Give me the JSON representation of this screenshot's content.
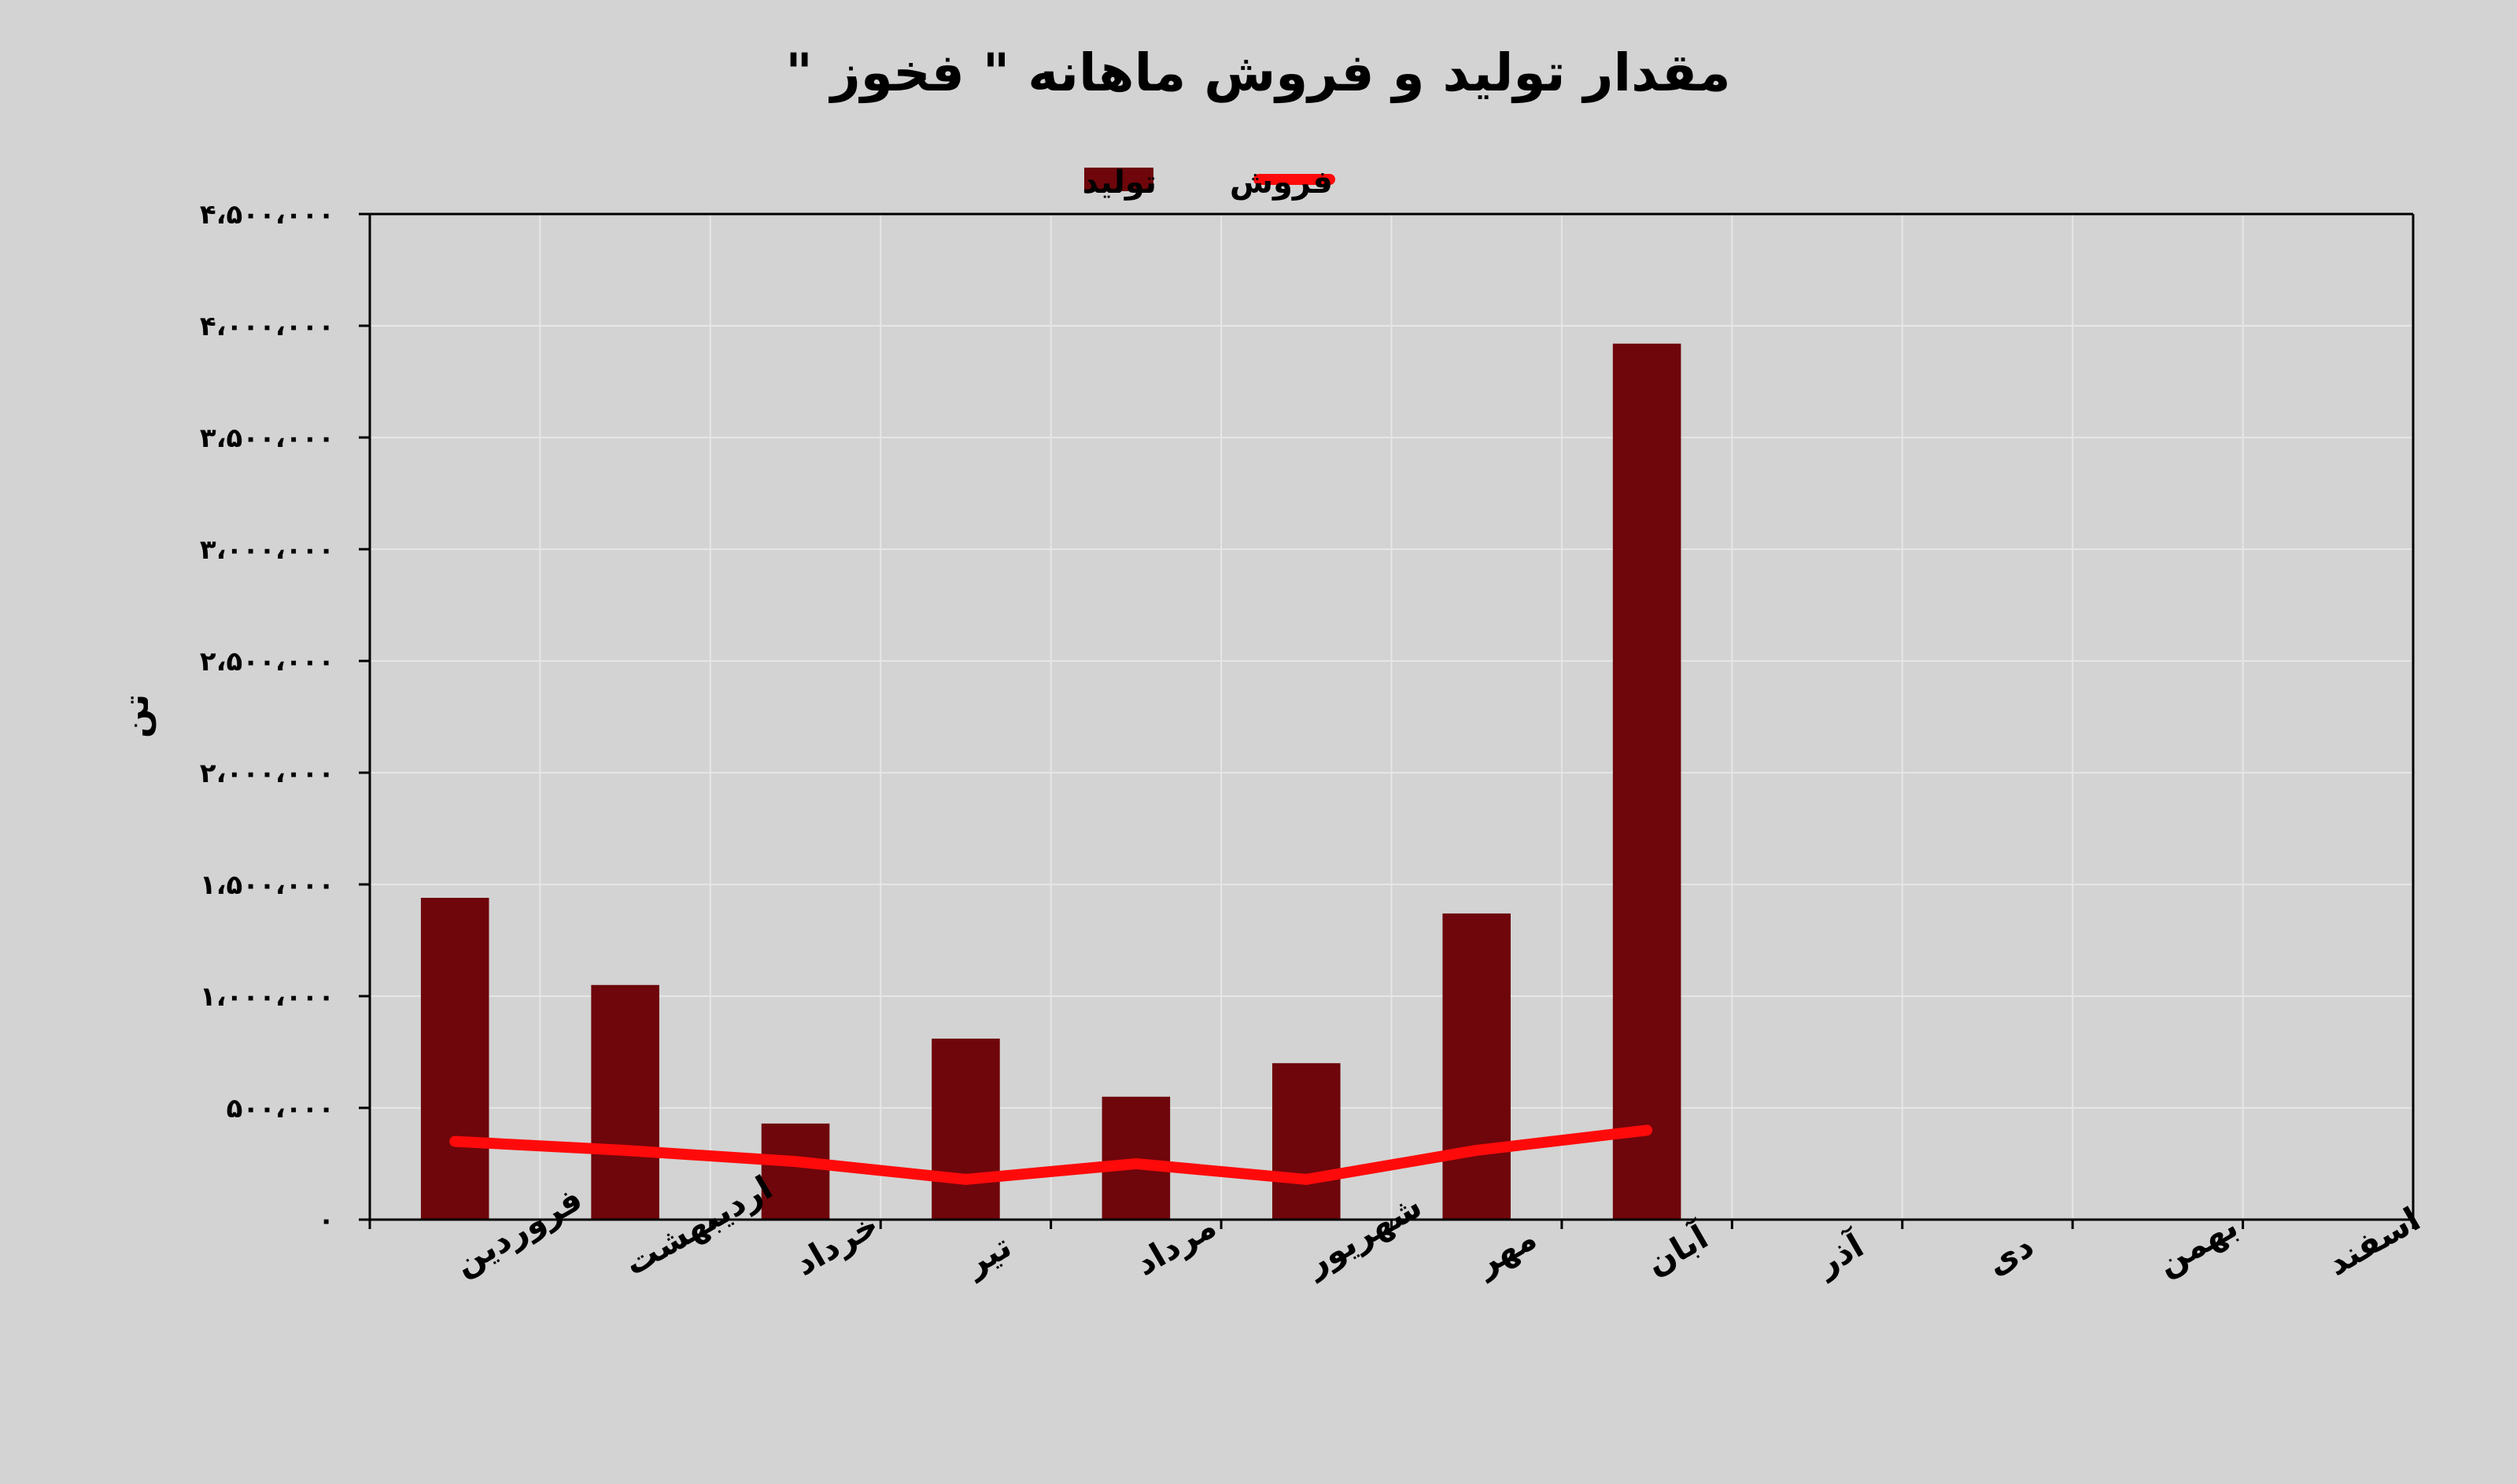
{
  "chart_data": {
    "type": "bar",
    "title": "مقدار تولید و فروش ماهانه \" فخوز \"",
    "ylabel": "تن",
    "xlabel": "",
    "ylim": [
      0,
      4500000
    ],
    "ytick_values": [
      0,
      500000,
      1000000,
      1500000,
      2000000,
      2500000,
      3000000,
      3500000,
      4000000,
      4500000
    ],
    "ytick_labels": [
      "۰",
      "۵۰۰،۰۰۰",
      "۱،۰۰۰،۰۰۰",
      "۱،۵۰۰،۰۰۰",
      "۲،۰۰۰،۰۰۰",
      "۲،۵۰۰،۰۰۰",
      "۳،۰۰۰،۰۰۰",
      "۳،۵۰۰،۰۰۰",
      "۴،۰۰۰،۰۰۰",
      "۴،۵۰۰،۰۰۰"
    ],
    "categories": [
      "فروردین",
      "اردیبهشت",
      "خرداد",
      "تیر",
      "مرداد",
      "شهریور",
      "مهر",
      "آبان",
      "آذر",
      "دی",
      "بهمن",
      "اسفند"
    ],
    "series": [
      {
        "name": "تولید",
        "type": "bar",
        "color": "#6e060b",
        "values": [
          1440000,
          1050000,
          430000,
          810000,
          550000,
          700000,
          1370000,
          3920000,
          null,
          null,
          null,
          null
        ]
      },
      {
        "name": "فروش",
        "type": "line",
        "color": "#ff0a0a",
        "values": [
          350000,
          310000,
          260000,
          180000,
          250000,
          180000,
          310000,
          400000,
          null,
          null,
          null,
          null
        ]
      }
    ],
    "grid": true,
    "legend_position": "top-center"
  }
}
